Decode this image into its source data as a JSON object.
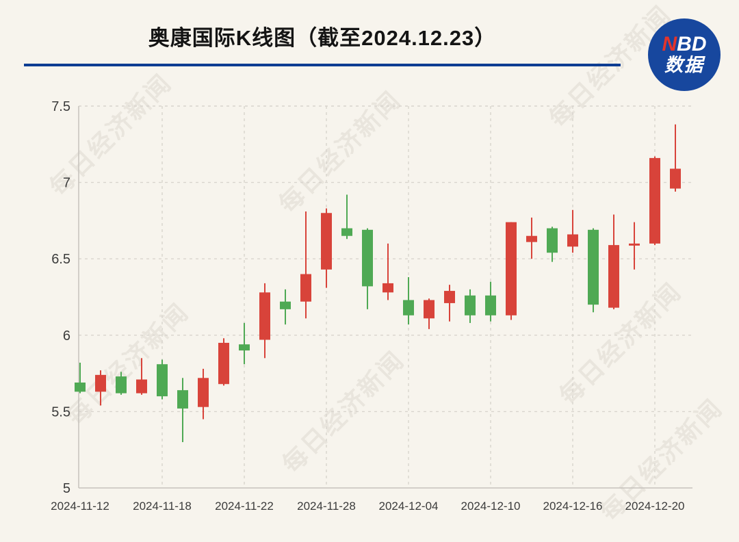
{
  "header": {
    "title": "奥康国际K线图（截至2024.12.23）",
    "underline_color": "#0d3d92"
  },
  "logo": {
    "n": "N",
    "bd": "BD",
    "sub": "数据",
    "circle_color": "#17479e",
    "n_color": "#e3342b"
  },
  "watermark": {
    "text": "每日经济新闻"
  },
  "chart_data": {
    "type": "candlestick",
    "title": "奥康国际K线图（截至2024.12.23）",
    "up_color": "#d8433a",
    "down_color": "#4fa954",
    "axis_color": "#c6c2bb",
    "grid_color": "#d8d4cd",
    "grid": true,
    "ylim": [
      5,
      7.5
    ],
    "yticks": [
      7.5,
      7,
      6.5,
      6,
      5.5,
      5
    ],
    "ytick_labels": [
      "7.5",
      "7",
      "6.5",
      "6",
      "5.5",
      "5"
    ],
    "xticks": [
      {
        "index": 0,
        "label": "2024-11-12"
      },
      {
        "index": 4,
        "label": "2024-11-18"
      },
      {
        "index": 8,
        "label": "2024-11-22"
      },
      {
        "index": 12,
        "label": "2024-11-28"
      },
      {
        "index": 16,
        "label": "2024-12-04"
      },
      {
        "index": 20,
        "label": "2024-12-10"
      },
      {
        "index": 24,
        "label": "2024-12-16"
      },
      {
        "index": 28,
        "label": "2024-12-20"
      }
    ],
    "candles": [
      {
        "date": "2024-11-12",
        "open": 5.69,
        "high": 5.82,
        "low": 5.62,
        "close": 5.63
      },
      {
        "date": "2024-11-13",
        "open": 5.63,
        "high": 5.77,
        "low": 5.54,
        "close": 5.74
      },
      {
        "date": "2024-11-14",
        "open": 5.73,
        "high": 5.76,
        "low": 5.61,
        "close": 5.62
      },
      {
        "date": "2024-11-15",
        "open": 5.62,
        "high": 5.85,
        "low": 5.61,
        "close": 5.71
      },
      {
        "date": "2024-11-18",
        "open": 5.81,
        "high": 5.84,
        "low": 5.58,
        "close": 5.6
      },
      {
        "date": "2024-11-19",
        "open": 5.64,
        "high": 5.72,
        "low": 5.3,
        "close": 5.52
      },
      {
        "date": "2024-11-20",
        "open": 5.53,
        "high": 5.78,
        "low": 5.45,
        "close": 5.72
      },
      {
        "date": "2024-11-21",
        "open": 5.68,
        "high": 5.98,
        "low": 5.67,
        "close": 5.95
      },
      {
        "date": "2024-11-22",
        "open": 5.94,
        "high": 6.08,
        "low": 5.81,
        "close": 5.9
      },
      {
        "date": "2024-11-25",
        "open": 5.97,
        "high": 6.34,
        "low": 5.85,
        "close": 6.28
      },
      {
        "date": "2024-11-26",
        "open": 6.22,
        "high": 6.3,
        "low": 6.07,
        "close": 6.17
      },
      {
        "date": "2024-11-27",
        "open": 6.22,
        "high": 6.81,
        "low": 6.11,
        "close": 6.4
      },
      {
        "date": "2024-11-28",
        "open": 6.43,
        "high": 6.83,
        "low": 6.31,
        "close": 6.8
      },
      {
        "date": "2024-11-29",
        "open": 6.7,
        "high": 6.92,
        "low": 6.63,
        "close": 6.65
      },
      {
        "date": "2024-12-02",
        "open": 6.69,
        "high": 6.7,
        "low": 6.17,
        "close": 6.32
      },
      {
        "date": "2024-12-03",
        "open": 6.28,
        "high": 6.6,
        "low": 6.23,
        "close": 6.34
      },
      {
        "date": "2024-12-04",
        "open": 6.23,
        "high": 6.38,
        "low": 6.07,
        "close": 6.13
      },
      {
        "date": "2024-12-05",
        "open": 6.11,
        "high": 6.24,
        "low": 6.04,
        "close": 6.23
      },
      {
        "date": "2024-12-06",
        "open": 6.21,
        "high": 6.33,
        "low": 6.09,
        "close": 6.29
      },
      {
        "date": "2024-12-09",
        "open": 6.26,
        "high": 6.3,
        "low": 6.08,
        "close": 6.13
      },
      {
        "date": "2024-12-10",
        "open": 6.26,
        "high": 6.35,
        "low": 6.09,
        "close": 6.13
      },
      {
        "date": "2024-12-11",
        "open": 6.13,
        "high": 6.74,
        "low": 6.1,
        "close": 6.74
      },
      {
        "date": "2024-12-12",
        "open": 6.61,
        "high": 6.77,
        "low": 6.5,
        "close": 6.65
      },
      {
        "date": "2024-12-13",
        "open": 6.7,
        "high": 6.71,
        "low": 6.48,
        "close": 6.54
      },
      {
        "date": "2024-12-16",
        "open": 6.58,
        "high": 6.82,
        "low": 6.54,
        "close": 6.66
      },
      {
        "date": "2024-12-17",
        "open": 6.69,
        "high": 6.7,
        "low": 6.15,
        "close": 6.2
      },
      {
        "date": "2024-12-18",
        "open": 6.18,
        "high": 6.79,
        "low": 6.17,
        "close": 6.59
      },
      {
        "date": "2024-12-19",
        "open": 6.59,
        "high": 6.74,
        "low": 6.43,
        "close": 6.6
      },
      {
        "date": "2024-12-20",
        "open": 6.6,
        "high": 7.17,
        "low": 6.59,
        "close": 7.16
      },
      {
        "date": "2024-12-23",
        "open": 6.96,
        "high": 7.38,
        "low": 6.94,
        "close": 7.09
      }
    ]
  }
}
